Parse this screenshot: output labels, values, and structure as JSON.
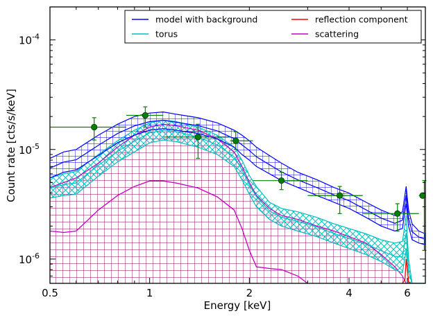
{
  "chart_data": {
    "type": "line",
    "title": "",
    "xlabel": "Energy [keV]",
    "ylabel": "Count rate [cts/s/keV]",
    "x_scale": "log",
    "y_scale": "log",
    "xlim": [
      0.5,
      6.8
    ],
    "ylim": [
      6e-07,
      0.0002
    ],
    "x_ticks": [
      {
        "value": 0.5,
        "label": "0.5"
      },
      {
        "value": 1,
        "label": "1"
      },
      {
        "value": 2,
        "label": "2"
      },
      {
        "value": 4,
        "label": "4"
      },
      {
        "value": 6,
        "label": "6"
      }
    ],
    "y_ticks": [
      {
        "value": 1e-06,
        "base": "10",
        "exp": "-6"
      },
      {
        "value": 1e-05,
        "base": "10",
        "exp": "-5"
      },
      {
        "value": 0.0001,
        "base": "10",
        "exp": "-4"
      }
    ],
    "grid": false,
    "legend_position": "top-right",
    "legend": [
      {
        "label": "model with background",
        "color": "#0000ff"
      },
      {
        "label": "reflection component",
        "color": "#ff0000"
      },
      {
        "label": "torus",
        "color": "#00bfbf"
      },
      {
        "label": "scattering",
        "color": "#bf00bf"
      }
    ],
    "series": [
      {
        "name": "model with background",
        "color": "#0000ff",
        "hatch": "grid",
        "x": [
          0.5,
          0.55,
          0.6,
          0.7,
          0.8,
          0.9,
          1.0,
          1.1,
          1.2,
          1.4,
          1.6,
          1.8,
          1.9,
          2.0,
          2.1,
          2.3,
          2.5,
          2.8,
          3.2,
          3.6,
          4.0,
          4.5,
          5.0,
          5.5,
          5.8,
          5.95,
          6.05,
          6.2,
          6.5,
          6.8
        ],
        "upper": [
          8.3e-06,
          9.5e-06,
          1e-05,
          1.35e-05,
          1.7e-05,
          2e-05,
          2.15e-05,
          2.2e-05,
          2.1e-05,
          1.95e-05,
          1.75e-05,
          1.5e-05,
          1.35e-05,
          1.2e-05,
          1.05e-05,
          8.8e-06,
          7.5e-06,
          6.2e-06,
          5.3e-06,
          4.5e-06,
          4e-06,
          3.3e-06,
          2.8e-06,
          2.5e-06,
          2.7e-06,
          4.6e-06,
          2.8e-06,
          2.1e-06,
          1.8e-06,
          1.7e-06
        ],
        "lower": [
          5.5e-06,
          6.2e-06,
          6.5e-06,
          8.8e-06,
          1.15e-05,
          1.35e-05,
          1.5e-05,
          1.55e-05,
          1.5e-05,
          1.4e-05,
          1.25e-05,
          1.05e-05,
          9e-06,
          8e-06,
          7e-06,
          6e-06,
          5.2e-06,
          4.5e-06,
          3.8e-06,
          3.3e-06,
          2.9e-06,
          2.4e-06,
          2e-06,
          1.8e-06,
          1.9e-06,
          3.2e-06,
          2e-06,
          1.5e-06,
          1.4e-06,
          1.35e-06
        ]
      },
      {
        "name": "torus",
        "color": "#00bfbf",
        "hatch": "diagonal",
        "x": [
          0.5,
          0.55,
          0.6,
          0.7,
          0.8,
          0.9,
          1.0,
          1.1,
          1.2,
          1.4,
          1.6,
          1.8,
          1.9,
          2.0,
          2.1,
          2.3,
          2.5,
          2.8,
          3.2,
          3.6,
          4.0,
          4.5,
          5.0,
          5.5,
          5.8,
          5.95,
          6.05,
          6.2,
          6.5,
          6.8
        ],
        "upper": [
          5.5e-06,
          6e-06,
          6.3e-06,
          9e-06,
          1.2e-05,
          1.5e-05,
          1.75e-05,
          1.85e-05,
          1.8e-05,
          1.6e-05,
          1.35e-05,
          1.05e-05,
          8e-06,
          5.8e-06,
          4.6e-06,
          3.3e-06,
          2.9e-06,
          2.7e-06,
          2.4e-06,
          2.1e-06,
          1.9e-06,
          1.7e-06,
          1.5e-06,
          1.4e-06,
          1.45e-06,
          2.5e-06,
          1e-06,
          6e-07,
          6e-07,
          6e-07
        ],
        "lower": [
          3.6e-06,
          3.8e-06,
          3.9e-06,
          5.7e-06,
          7.7e-06,
          9.5e-06,
          1.15e-05,
          1.22e-05,
          1.18e-05,
          1.05e-05,
          9e-06,
          7e-06,
          5.3e-06,
          3.9e-06,
          3e-06,
          2.3e-06,
          2e-06,
          1.8e-06,
          1.6e-06,
          1.4e-06,
          1.25e-06,
          1.1e-06,
          9.5e-07,
          8e-07,
          7.5e-07,
          1.2e-06,
          6e-07,
          6e-07,
          6e-07,
          6e-07
        ]
      },
      {
        "name": "scattering",
        "color": "#bf00bf",
        "hatch": "grid",
        "x": [
          0.5,
          0.55,
          0.6,
          0.7,
          0.8,
          0.9,
          1.0,
          1.1,
          1.2,
          1.4,
          1.6,
          1.8,
          1.9,
          2.0,
          2.1,
          2.3,
          2.5,
          2.8,
          3.2,
          3.6,
          4.0,
          4.5,
          5.0,
          5.5,
          5.8,
          5.95,
          6.05,
          6.2,
          6.5,
          6.8
        ],
        "upper": [
          4.5e-06,
          5e-06,
          5.5e-06,
          7.5e-06,
          1.05e-05,
          1.35e-05,
          1.6e-05,
          1.7e-05,
          1.65e-05,
          1.5e-05,
          1.25e-05,
          9.5e-06,
          7e-06,
          5e-06,
          3.8e-06,
          2.9e-06,
          2.5e-06,
          2.3e-06,
          2e-06,
          1.8e-06,
          1.6e-06,
          1.4e-06,
          1.1e-06,
          8.5e-07,
          7e-07,
          6e-07,
          6e-07,
          6e-07,
          6e-07,
          6e-07
        ],
        "lower": [
          6e-07,
          6e-07,
          6e-07,
          6e-07,
          6e-07,
          6e-07,
          6e-07,
          6e-07,
          6e-07,
          6e-07,
          6e-07,
          6e-07,
          6e-07,
          6e-07,
          6e-07,
          6e-07,
          6e-07,
          6e-07,
          6e-07,
          6e-07,
          6e-07,
          6e-07,
          6e-07,
          6e-07,
          6e-07,
          6e-07,
          6e-07,
          6e-07,
          6e-07,
          6e-07
        ]
      },
      {
        "name": "scattering (central)",
        "color": "#bf00bf",
        "x": [
          0.5,
          0.55,
          0.6,
          0.7,
          0.8,
          0.9,
          1.0,
          1.1,
          1.2,
          1.4,
          1.6,
          1.8,
          1.9,
          2.0,
          2.1,
          2.3,
          2.5,
          2.8,
          3.0
        ],
        "y": [
          1.8e-06,
          1.75e-06,
          1.8e-06,
          2.8e-06,
          3.8e-06,
          4.6e-06,
          5.15e-06,
          5.15e-06,
          4.95e-06,
          4.45e-06,
          3.7e-06,
          2.8e-06,
          1.9e-06,
          1.2e-06,
          8.5e-07,
          8.2e-07,
          8e-07,
          7e-07,
          6e-07
        ]
      },
      {
        "name": "reflection component",
        "color": "#ff0000",
        "x": [
          5.8,
          5.9,
          5.95,
          6.0,
          6.05,
          6.12
        ],
        "y": [
          6e-07,
          6.5e-07,
          1e-06,
          8e-07,
          6.2e-07,
          6e-07
        ]
      }
    ],
    "data_points": {
      "color": "#008000",
      "points": [
        {
          "x": 0.68,
          "y": 1.6e-05,
          "xerr": [
            0.5,
            0.85
          ],
          "yerr": [
            1.22e-05,
            1.95e-05
          ]
        },
        {
          "x": 0.97,
          "y": 2.05e-05,
          "xerr": [
            0.85,
            1.1
          ],
          "yerr": [
            1.6e-05,
            2.45e-05
          ]
        },
        {
          "x": 1.4,
          "y": 1.3e-05,
          "xerr": [
            1.1,
            1.75
          ],
          "yerr": [
            8.3e-06,
            1.7e-05
          ]
        },
        {
          "x": 1.82,
          "y": 1.2e-05,
          "xerr": [
            1.75,
            2.05
          ],
          "yerr": [
            1e-05,
            1.45e-05
          ]
        },
        {
          "x": 2.5,
          "y": 5.2e-06,
          "xerr": [
            2.05,
            3.0
          ],
          "yerr": [
            4.3e-06,
            6.2e-06
          ]
        },
        {
          "x": 3.75,
          "y": 3.8e-06,
          "xerr": [
            3.0,
            4.4
          ],
          "yerr": [
            2.6e-06,
            4.6e-06
          ]
        },
        {
          "x": 5.6,
          "y": 2.6e-06,
          "xerr": [
            4.4,
            6.5
          ],
          "yerr": [
            1.8e-06,
            3.2e-06
          ]
        },
        {
          "x": 6.75,
          "y": 3.8e-06,
          "xerr": [
            6.5,
            6.8
          ],
          "yerr": [
            1.2e-06,
            5.2e-06
          ]
        }
      ]
    }
  }
}
